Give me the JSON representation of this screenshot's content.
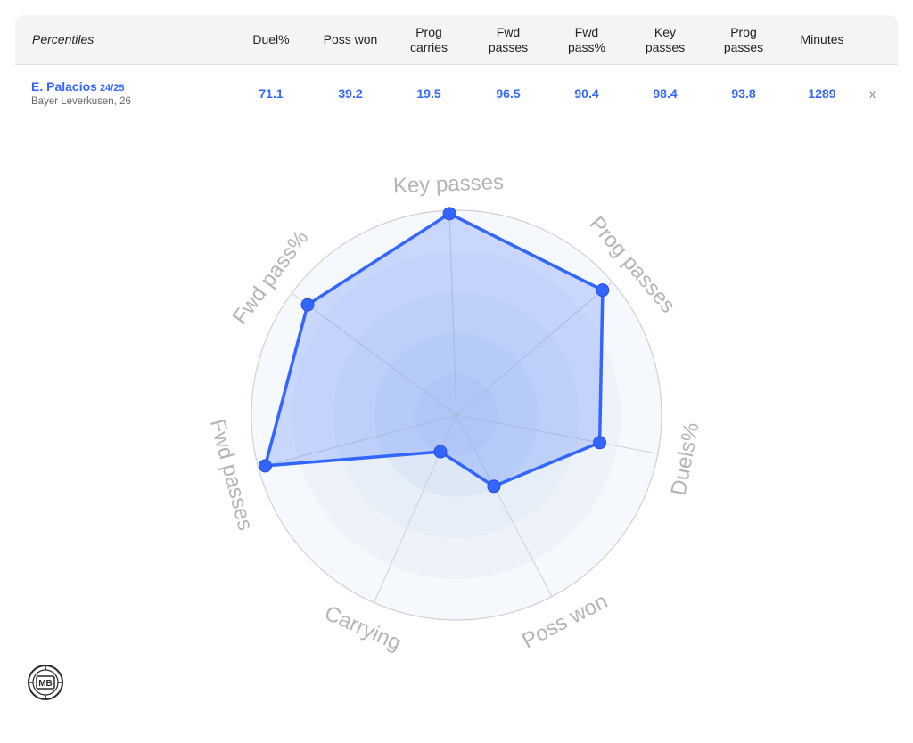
{
  "header": {
    "percentiles_label": "Percentiles",
    "columns": [
      {
        "line1": "Duel%",
        "line2": ""
      },
      {
        "line1": "Poss won",
        "line2": ""
      },
      {
        "line1": "Prog",
        "line2": "carries"
      },
      {
        "line1": "Fwd",
        "line2": "passes"
      },
      {
        "line1": "Fwd",
        "line2": "pass%"
      },
      {
        "line1": "Key",
        "line2": "passes"
      },
      {
        "line1": "Prog",
        "line2": "passes"
      },
      {
        "line1": "Minutes",
        "line2": ""
      }
    ]
  },
  "player": {
    "name": "E. Palacios",
    "season": "24/25",
    "club": "Bayer Leverkusen, 26",
    "values": [
      "71.1",
      "39.2",
      "19.5",
      "96.5",
      "90.4",
      "98.4",
      "93.8",
      "1289"
    ],
    "remove_label": "x"
  },
  "chart_data": {
    "type": "radar",
    "axes": [
      "Key passes",
      "Prog passes",
      "Duels%",
      "Poss won",
      "Carrying",
      "Fwd passes",
      "Fwd pass%"
    ],
    "values": [
      98.4,
      93.8,
      71.1,
      39.2,
      19.5,
      96.5,
      90.4
    ],
    "range": [
      0,
      100
    ],
    "color": "#3366ff",
    "fill_color": "#3366ff"
  },
  "logo": {
    "text": "MB"
  }
}
